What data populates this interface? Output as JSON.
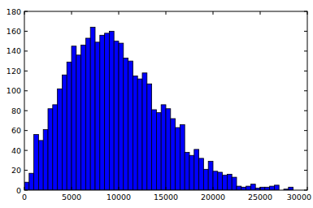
{
  "chart_data": {
    "type": "histogram",
    "bins": [
      0,
      500,
      1000,
      1500,
      2000,
      2500,
      3000,
      3500,
      4000,
      4500,
      5000,
      5500,
      6000,
      6500,
      7000,
      7500,
      8000,
      8500,
      9000,
      9500,
      10000,
      10500,
      11000,
      11500,
      12000,
      12500,
      13000,
      13500,
      14000,
      14500,
      15000,
      15500,
      16000,
      16500,
      17000,
      17500,
      18000,
      18500,
      19000,
      19500,
      20000,
      20500,
      21000,
      21500,
      22000,
      22500,
      23000,
      23500,
      24000,
      24500,
      25000,
      25500,
      26000,
      26500,
      27000,
      27500,
      28000,
      28500
    ],
    "values": [
      8,
      17,
      56,
      50,
      61,
      82,
      86,
      102,
      116,
      129,
      145,
      136,
      146,
      153,
      164,
      149,
      156,
      158,
      160,
      150,
      148,
      133,
      130,
      115,
      112,
      118,
      107,
      81,
      78,
      86,
      82,
      72,
      63,
      66,
      38,
      35,
      41,
      32,
      21,
      29,
      19,
      18,
      15,
      16,
      13,
      4,
      3,
      4,
      6,
      2,
      3,
      3,
      4,
      5,
      0,
      1,
      3
    ],
    "color": "#0000ff",
    "xlim": [
      0,
      30000
    ],
    "xticks": [
      0,
      5000,
      10000,
      15000,
      20000,
      25000,
      30000
    ],
    "ylim": [
      0,
      180
    ],
    "yticks": [
      0,
      20,
      40,
      60,
      80,
      100,
      120,
      140,
      160,
      180
    ],
    "grid": false
  }
}
